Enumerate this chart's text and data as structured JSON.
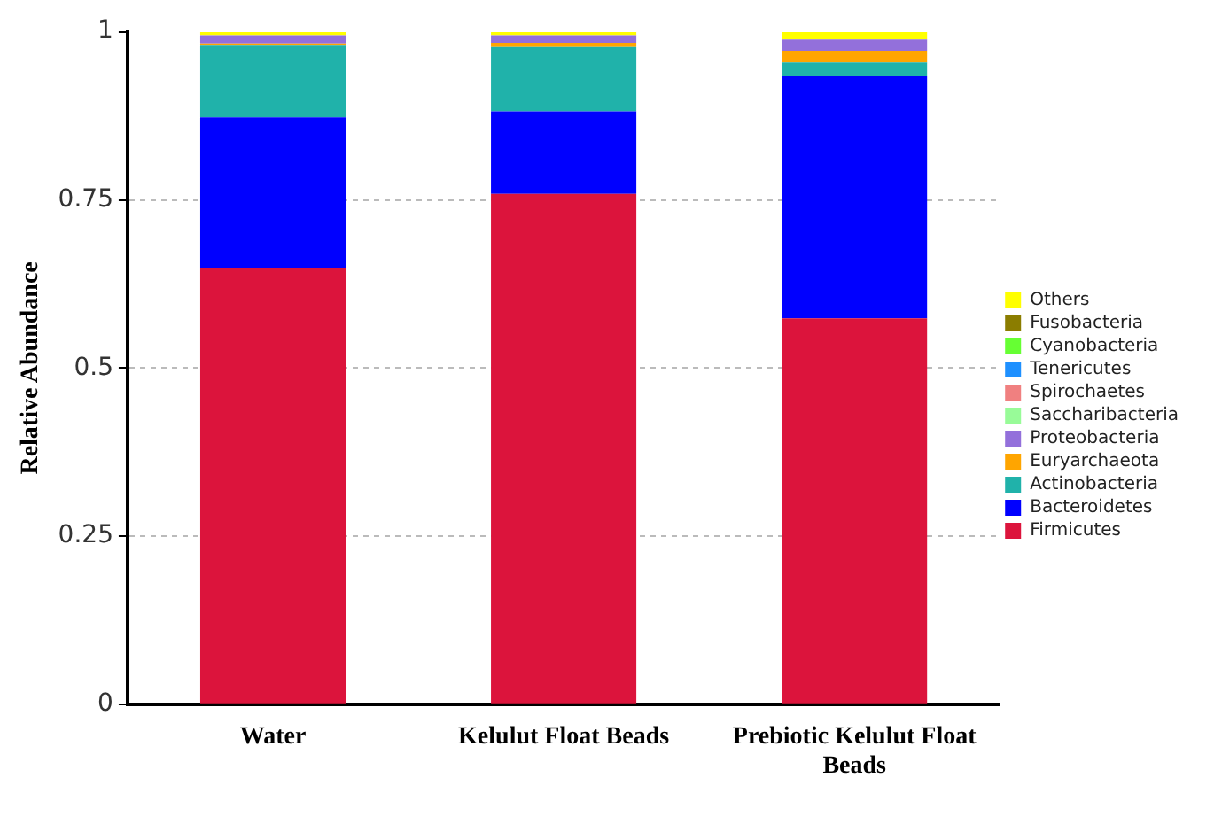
{
  "chart_data": {
    "type": "bar",
    "stacked": true,
    "ylabel": "Relative Abundance",
    "categories": [
      "Water",
      "Kelulut Float Beads",
      "Prebiotic Kelulut Float Beads"
    ],
    "ylim": [
      0,
      1
    ],
    "yticks": [
      0,
      0.25,
      0.5,
      0.75,
      1
    ],
    "grid": "y",
    "legend": "right",
    "series": [
      {
        "name": "Firmicutes",
        "color": "#dc143c",
        "values": [
          0.649,
          0.759,
          0.574
        ]
      },
      {
        "name": "Bacteroidetes",
        "color": "#0000ff",
        "values": [
          0.224,
          0.123,
          0.36
        ]
      },
      {
        "name": "Actinobacteria",
        "color": "#20b2aa",
        "values": [
          0.107,
          0.096,
          0.021
        ]
      },
      {
        "name": "Euryarchaeota",
        "color": "#ffa500",
        "values": [
          0.002,
          0.006,
          0.016
        ]
      },
      {
        "name": "Proteobacteria",
        "color": "#9370db",
        "values": [
          0.012,
          0.01,
          0.018
        ]
      },
      {
        "name": "Saccharibacteria",
        "color": "#98fb98",
        "values": [
          0,
          0,
          0
        ]
      },
      {
        "name": "Spirochaetes",
        "color": "#f08080",
        "values": [
          0,
          0,
          0
        ]
      },
      {
        "name": "Tenericutes",
        "color": "#1e90ff",
        "values": [
          0,
          0,
          0
        ]
      },
      {
        "name": "Cyanobacteria",
        "color": "#66ff33",
        "values": [
          0,
          0,
          0
        ]
      },
      {
        "name": "Fusobacteria",
        "color": "#8b7d00",
        "values": [
          0,
          0,
          0
        ]
      },
      {
        "name": "Others",
        "color": "#ffff00",
        "values": [
          0.006,
          0.006,
          0.011
        ]
      }
    ]
  }
}
